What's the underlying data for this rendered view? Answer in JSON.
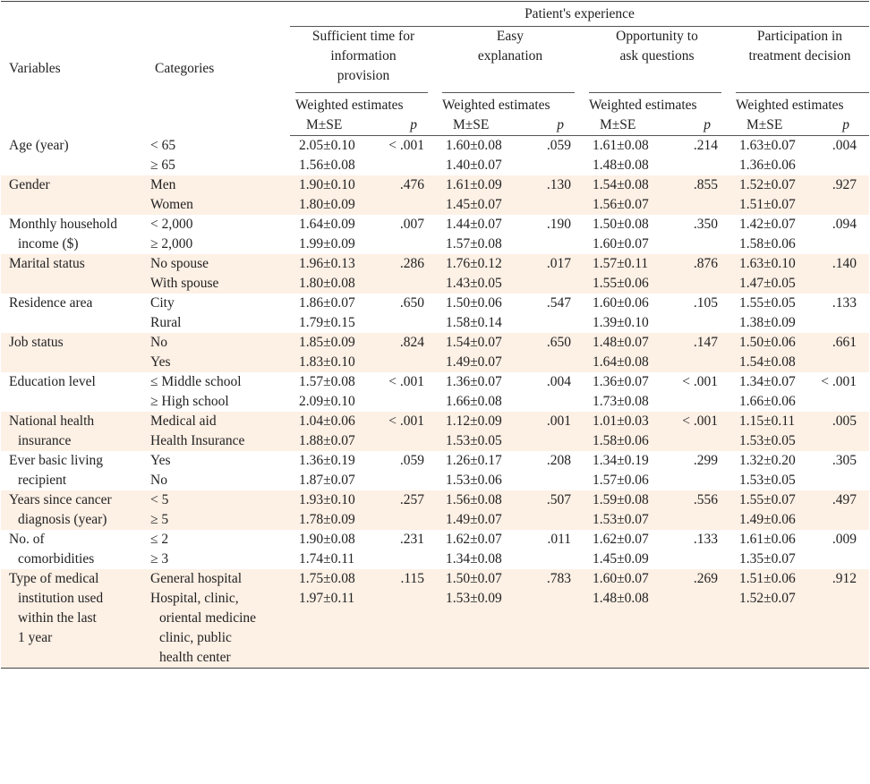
{
  "header": {
    "variables": "Variables",
    "categories": "Categories",
    "patients_experience": "Patient's experience",
    "groups": [
      [
        "Sufficient time for",
        "information",
        "provision"
      ],
      [
        "Easy",
        "explanation"
      ],
      [
        "Opportunity to",
        "ask questions"
      ],
      [
        "Participation in",
        "treatment decision"
      ]
    ],
    "weighted_estimates": "Weighted estimates",
    "m_se": "M±SE",
    "p": "p"
  },
  "rows": [
    {
      "variable": [
        "Age (year)"
      ],
      "categories": [
        "< 65",
        "≥ 65"
      ],
      "shaded": false,
      "cells": [
        {
          "m": [
            "2.05±0.10",
            "1.56±0.08"
          ],
          "p": "< .001"
        },
        {
          "m": [
            "1.60±0.08",
            "1.40±0.07"
          ],
          "p": ".059"
        },
        {
          "m": [
            "1.61±0.08",
            "1.48±0.08"
          ],
          "p": ".214"
        },
        {
          "m": [
            "1.63±0.07",
            "1.36±0.06"
          ],
          "p": ".004"
        }
      ]
    },
    {
      "variable": [
        "Gender"
      ],
      "categories": [
        "Men",
        "Women"
      ],
      "shaded": true,
      "cells": [
        {
          "m": [
            "1.90±0.10",
            "1.80±0.09"
          ],
          "p": ".476"
        },
        {
          "m": [
            "1.61±0.09",
            "1.45±0.07"
          ],
          "p": ".130"
        },
        {
          "m": [
            "1.54±0.08",
            "1.56±0.07"
          ],
          "p": ".855"
        },
        {
          "m": [
            "1.52±0.07",
            "1.51±0.07"
          ],
          "p": ".927"
        }
      ]
    },
    {
      "variable": [
        "Monthly household",
        "income ($)"
      ],
      "categories": [
        "< 2,000",
        "≥ 2,000"
      ],
      "shaded": false,
      "cells": [
        {
          "m": [
            "1.64±0.09",
            "1.99±0.09"
          ],
          "p": ".007"
        },
        {
          "m": [
            "1.44±0.07",
            "1.57±0.08"
          ],
          "p": ".190"
        },
        {
          "m": [
            "1.50±0.08",
            "1.60±0.07"
          ],
          "p": ".350"
        },
        {
          "m": [
            "1.42±0.07",
            "1.58±0.06"
          ],
          "p": ".094"
        }
      ]
    },
    {
      "variable": [
        "Marital status"
      ],
      "categories": [
        "No spouse",
        "With spouse"
      ],
      "shaded": true,
      "cells": [
        {
          "m": [
            "1.96±0.13",
            "1.80±0.08"
          ],
          "p": ".286"
        },
        {
          "m": [
            "1.76±0.12",
            "1.43±0.05"
          ],
          "p": ".017"
        },
        {
          "m": [
            "1.57±0.11",
            "1.55±0.06"
          ],
          "p": ".876"
        },
        {
          "m": [
            "1.63±0.10",
            "1.47±0.05"
          ],
          "p": ".140"
        }
      ]
    },
    {
      "variable": [
        "Residence area"
      ],
      "categories": [
        "City",
        "Rural"
      ],
      "shaded": false,
      "cells": [
        {
          "m": [
            "1.86±0.07",
            "1.79±0.15"
          ],
          "p": ".650"
        },
        {
          "m": [
            "1.50±0.06",
            "1.58±0.14"
          ],
          "p": ".547"
        },
        {
          "m": [
            "1.60±0.06",
            "1.39±0.10"
          ],
          "p": ".105"
        },
        {
          "m": [
            "1.55±0.05",
            "1.38±0.09"
          ],
          "p": ".133"
        }
      ]
    },
    {
      "variable": [
        "Job status"
      ],
      "categories": [
        "No",
        "Yes"
      ],
      "shaded": true,
      "cells": [
        {
          "m": [
            "1.85±0.09",
            "1.83±0.10"
          ],
          "p": ".824"
        },
        {
          "m": [
            "1.54±0.07",
            "1.49±0.07"
          ],
          "p": ".650"
        },
        {
          "m": [
            "1.48±0.07",
            "1.64±0.08"
          ],
          "p": ".147"
        },
        {
          "m": [
            "1.50±0.06",
            "1.54±0.08"
          ],
          "p": ".661"
        }
      ]
    },
    {
      "variable": [
        "Education level"
      ],
      "categories": [
        "≤ Middle school",
        "≥ High school"
      ],
      "shaded": false,
      "cells": [
        {
          "m": [
            "1.57±0.08",
            "2.09±0.10"
          ],
          "p": "< .001"
        },
        {
          "m": [
            "1.36±0.07",
            "1.66±0.08"
          ],
          "p": ".004"
        },
        {
          "m": [
            "1.36±0.07",
            "1.73±0.08"
          ],
          "p": "< .001"
        },
        {
          "m": [
            "1.34±0.07",
            "1.66±0.06"
          ],
          "p": "< .001"
        }
      ]
    },
    {
      "variable": [
        "National health",
        "insurance"
      ],
      "categories": [
        "Medical aid",
        "Health Insurance"
      ],
      "shaded": true,
      "cells": [
        {
          "m": [
            "1.04±0.06",
            "1.88±0.07"
          ],
          "p": "< .001"
        },
        {
          "m": [
            "1.12±0.09",
            "1.53±0.05"
          ],
          "p": ".001"
        },
        {
          "m": [
            "1.01±0.03",
            "1.58±0.06"
          ],
          "p": "< .001"
        },
        {
          "m": [
            "1.15±0.11",
            "1.53±0.05"
          ],
          "p": ".005"
        }
      ]
    },
    {
      "variable": [
        "Ever basic living",
        "recipient"
      ],
      "categories": [
        "Yes",
        "No"
      ],
      "shaded": false,
      "cells": [
        {
          "m": [
            "1.36±0.19",
            "1.87±0.07"
          ],
          "p": ".059"
        },
        {
          "m": [
            "1.26±0.17",
            "1.53±0.06"
          ],
          "p": ".208"
        },
        {
          "m": [
            "1.34±0.19",
            "1.57±0.06"
          ],
          "p": ".299"
        },
        {
          "m": [
            "1.32±0.20",
            "1.53±0.05"
          ],
          "p": ".305"
        }
      ]
    },
    {
      "variable": [
        "Years since cancer",
        "diagnosis (year)"
      ],
      "categories": [
        "< 5",
        "≥ 5"
      ],
      "shaded": true,
      "cells": [
        {
          "m": [
            "1.93±0.10",
            "1.78±0.09"
          ],
          "p": ".257"
        },
        {
          "m": [
            "1.56±0.08",
            "1.49±0.07"
          ],
          "p": ".507"
        },
        {
          "m": [
            "1.59±0.08",
            "1.53±0.07"
          ],
          "p": ".556"
        },
        {
          "m": [
            "1.55±0.07",
            "1.49±0.06"
          ],
          "p": ".497"
        }
      ]
    },
    {
      "variable": [
        "No. of",
        "comorbidities"
      ],
      "categories": [
        "≤ 2",
        "≥ 3"
      ],
      "shaded": false,
      "cells": [
        {
          "m": [
            "1.90±0.08",
            "1.74±0.11"
          ],
          "p": ".231"
        },
        {
          "m": [
            "1.62±0.07",
            "1.34±0.08"
          ],
          "p": ".011"
        },
        {
          "m": [
            "1.62±0.07",
            "1.45±0.09"
          ],
          "p": ".133"
        },
        {
          "m": [
            "1.61±0.06",
            "1.35±0.07"
          ],
          "p": ".009"
        }
      ]
    },
    {
      "variable": [
        "Type of medical",
        "institution used",
        "within the last",
        "1 year"
      ],
      "categories": [
        "General hospital",
        "Hospital, clinic,",
        "oriental medicine",
        "clinic, public",
        "health center"
      ],
      "shaded": true,
      "cells": [
        {
          "m": [
            "1.75±0.08",
            "1.97±0.11"
          ],
          "p": ".115"
        },
        {
          "m": [
            "1.50±0.07",
            "1.53±0.09"
          ],
          "p": ".783"
        },
        {
          "m": [
            "1.60±0.07",
            "1.48±0.08"
          ],
          "p": ".269"
        },
        {
          "m": [
            "1.51±0.06",
            "1.52±0.07"
          ],
          "p": ".912"
        }
      ]
    }
  ]
}
